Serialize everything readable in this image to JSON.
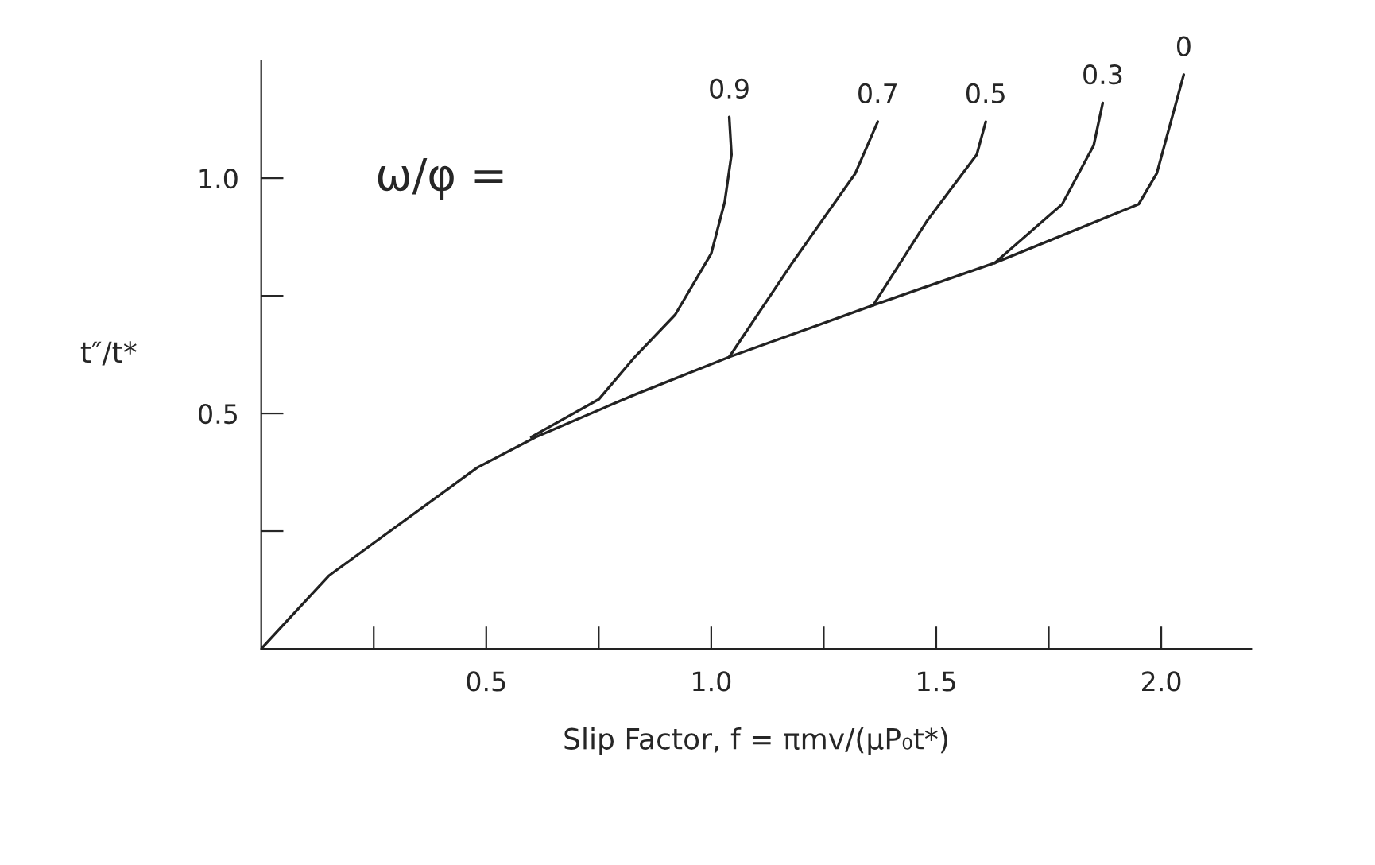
{
  "chart_data": {
    "type": "line",
    "xlabel": "Slip Factor, f = πmv/(μP₀t*)",
    "ylabel": "t″/t*",
    "annotations": [
      "ω/φ ="
    ],
    "xlim": [
      0,
      2.2
    ],
    "ylim": [
      0,
      1.25
    ],
    "xticks": [
      {
        "value": 0.25,
        "label": null
      },
      0.5,
      {
        "value": 0.75,
        "label": null
      },
      {
        "value": 1,
        "label": "1.0"
      },
      {
        "value": 1.25,
        "label": null
      },
      1.5,
      {
        "value": 1.75,
        "label": null
      },
      {
        "value": 2,
        "label": "2.0"
      }
    ],
    "yticks": [
      {
        "value": 0.25,
        "label": null
      },
      0.5,
      {
        "value": 0.75,
        "label": null
      },
      {
        "value": 1,
        "label": "1.0"
      }
    ],
    "grid": false,
    "legend": false,
    "marker": "none",
    "line_style": "solid",
    "series": [
      {
        "name": "0.9",
        "color": "#222222",
        "x": [
          0.6,
          0.75,
          0.83,
          0.92,
          1.0,
          1.03,
          1.045,
          1.04
        ],
        "values": [
          0.45,
          0.53,
          0.62,
          0.71,
          0.84,
          0.95,
          1.05,
          1.13
        ]
      },
      {
        "name": "0.7",
        "color": "#222222",
        "x": [
          1.04,
          1.18,
          1.32,
          1.37
        ],
        "values": [
          0.62,
          0.82,
          1.01,
          1.12
        ]
      },
      {
        "name": "0.5",
        "color": "#222222",
        "x": [
          1.36,
          1.48,
          1.59,
          1.61
        ],
        "values": [
          0.73,
          0.91,
          1.05,
          1.12
        ]
      },
      {
        "name": "0.3",
        "color": "#222222",
        "x": [
          1.63,
          1.78,
          1.85,
          1.87
        ],
        "values": [
          0.82,
          0.945,
          1.07,
          1.16
        ]
      },
      {
        "name": "0",
        "color": "#222222",
        "x": [
          0,
          0.15,
          0.48,
          0.61,
          0.83,
          1.04,
          1.36,
          1.63,
          1.95,
          1.99,
          2.05
        ],
        "values": [
          0,
          0.155,
          0.385,
          0.45,
          0.54,
          0.62,
          0.73,
          0.82,
          0.945,
          1.01,
          1.22
        ]
      }
    ]
  }
}
